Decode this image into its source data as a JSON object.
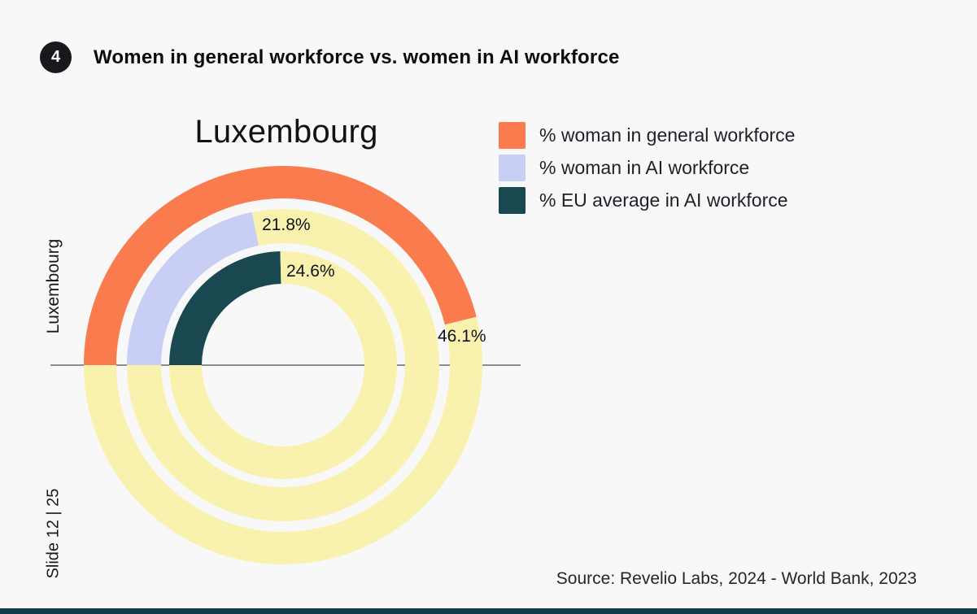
{
  "header": {
    "badge": "4",
    "title": "Women in general workforce vs. women in AI workforce"
  },
  "legend": {
    "items": [
      {
        "label": "% woman in general workforce",
        "color": "#FA7B4E"
      },
      {
        "label": "% woman in AI workforce",
        "color": "#C9CEF4"
      },
      {
        "label": "% EU average in AI workforce",
        "color": "#1A4850"
      }
    ]
  },
  "chart": {
    "title": "Luxembourg",
    "axis_label": "Luxembourg",
    "value_labels": {
      "outer": "46.1%",
      "middle": "21.8%",
      "inner": "24.6%"
    }
  },
  "footer": {
    "slide_label": "Slide 12 | 25",
    "source": "Source: Revelio Labs, 2024 - World Bank, 2023"
  },
  "colors": {
    "background": "#F8F8F8",
    "remainder_yellow": "#F9F2AE",
    "axis_line": "#4D4D4D",
    "badge": "#17191C",
    "bottom_bar": "#123D48"
  },
  "chart_data": {
    "type": "pie",
    "variant": "nested_donut_gauge",
    "title": "Luxembourg",
    "category": "Luxembourg",
    "start_angle_deg": 180,
    "direction": "clockwise",
    "full_circle_percent": 100,
    "remainder_color": "#F9F2AE",
    "legend_position": "top-right",
    "series": [
      {
        "name": "% woman in general workforce",
        "ring": "outer",
        "value": 46.1,
        "label": "46.1%",
        "color": "#FA7B4E"
      },
      {
        "name": "% woman in AI workforce",
        "ring": "middle",
        "value": 21.8,
        "label": "21.8%",
        "color": "#C9CEF4"
      },
      {
        "name": "% EU average in AI workforce",
        "ring": "inner",
        "value": 24.6,
        "label": "24.6%",
        "color": "#1A4850"
      }
    ]
  }
}
